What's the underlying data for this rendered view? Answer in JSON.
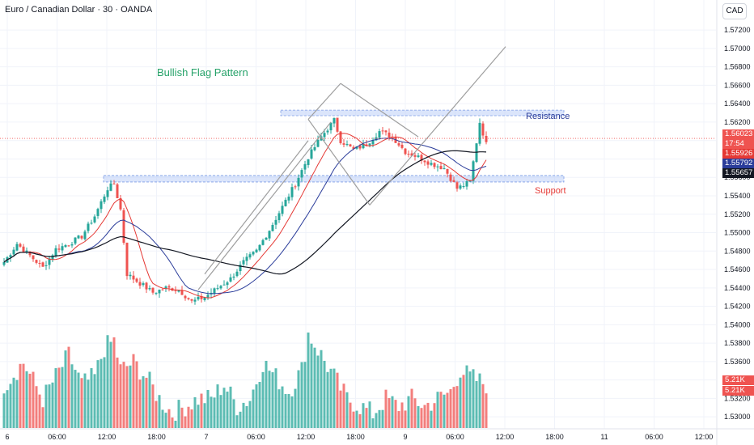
{
  "header": {
    "title": "Euro / Canadian Dollar · 30 · OANDA",
    "currency": "CAD"
  },
  "annotations": {
    "pattern": "Bullish Flag Pattern",
    "resistance": "Resistance",
    "support": "Support"
  },
  "price_tags": {
    "last": "1.56023",
    "countdown": "17:54",
    "ma_fast": "1.55926",
    "ma_mid": "1.55792",
    "ma_slow": "1.55657",
    "vol_a": "5.21K",
    "vol_b": "5.21K"
  },
  "colors": {
    "up": "#26a69a",
    "down": "#ef5350",
    "ma_fast": "#e53935",
    "ma_mid": "#2a3c9a",
    "ma_slow": "#131722",
    "zone": "#bdd0f8",
    "pattern_text": "#26a269"
  },
  "chart_data": {
    "type": "candlestick",
    "symbol": "EURCAD",
    "timeframe": "30",
    "x_ticks": [
      "6",
      "06:00",
      "12:00",
      "18:00",
      "7",
      "06:00",
      "12:00",
      "18:00",
      "9",
      "06:00",
      "12:00",
      "18:00",
      "11",
      "06:00",
      "12:00"
    ],
    "y_ticks": [
      "1.57200",
      "1.57000",
      "1.56800",
      "1.56600",
      "1.56400",
      "1.56200",
      "1.56000",
      "1.55800",
      "1.55600",
      "1.55400",
      "1.55200",
      "1.55000",
      "1.54800",
      "1.54600",
      "1.54400",
      "1.54200",
      "1.54000",
      "1.53800",
      "1.53600",
      "1.53400",
      "1.53200",
      "1.53000"
    ],
    "ylim": [
      1.5294,
      1.5728
    ],
    "resistance_zone": [
      1.5627,
      1.5633
    ],
    "support_zone": [
      1.5555,
      1.5562
    ],
    "last_price": 1.56023,
    "close_anchors": [
      [
        0,
        1.5468
      ],
      [
        4,
        1.5488
      ],
      [
        8,
        1.5475
      ],
      [
        12,
        1.5462
      ],
      [
        16,
        1.5482
      ],
      [
        20,
        1.5488
      ],
      [
        24,
        1.5496
      ],
      [
        28,
        1.5518
      ],
      [
        32,
        1.5548
      ],
      [
        34,
        1.5553
      ],
      [
        36,
        1.5525
      ],
      [
        38,
        1.5455
      ],
      [
        42,
        1.5445
      ],
      [
        46,
        1.5435
      ],
      [
        50,
        1.544
      ],
      [
        54,
        1.5438
      ],
      [
        58,
        1.5425
      ],
      [
        62,
        1.543
      ],
      [
        66,
        1.544
      ],
      [
        70,
        1.545
      ],
      [
        74,
        1.5468
      ],
      [
        78,
        1.548
      ],
      [
        82,
        1.5503
      ],
      [
        86,
        1.5528
      ],
      [
        90,
        1.5553
      ],
      [
        94,
        1.5582
      ],
      [
        98,
        1.5604
      ],
      [
        102,
        1.5622
      ],
      [
        104,
        1.56
      ],
      [
        108,
        1.559
      ],
      [
        112,
        1.5596
      ],
      [
        116,
        1.561
      ],
      [
        120,
        1.5604
      ],
      [
        124,
        1.5588
      ],
      [
        128,
        1.5582
      ],
      [
        132,
        1.5575
      ],
      [
        136,
        1.557
      ],
      [
        140,
        1.5548
      ],
      [
        144,
        1.5555
      ],
      [
        147,
        1.562
      ],
      [
        149,
        1.5596
      ]
    ],
    "volume_anchors": [
      [
        0,
        6
      ],
      [
        6,
        9
      ],
      [
        12,
        4
      ],
      [
        16,
        7
      ],
      [
        20,
        10
      ],
      [
        24,
        6
      ],
      [
        28,
        7
      ],
      [
        31,
        11
      ],
      [
        34,
        12
      ],
      [
        36,
        8
      ],
      [
        40,
        9
      ],
      [
        44,
        7
      ],
      [
        48,
        4
      ],
      [
        52,
        2
      ],
      [
        56,
        3
      ],
      [
        60,
        4
      ],
      [
        64,
        4
      ],
      [
        68,
        6
      ],
      [
        72,
        3
      ],
      [
        76,
        4
      ],
      [
        80,
        9
      ],
      [
        84,
        7
      ],
      [
        88,
        5
      ],
      [
        92,
        8
      ],
      [
        94,
        13
      ],
      [
        98,
        10
      ],
      [
        102,
        7
      ],
      [
        106,
        4
      ],
      [
        110,
        3
      ],
      [
        114,
        2
      ],
      [
        118,
        4
      ],
      [
        122,
        3
      ],
      [
        126,
        4
      ],
      [
        130,
        3
      ],
      [
        134,
        4
      ],
      [
        138,
        5
      ],
      [
        141,
        8
      ],
      [
        144,
        7
      ],
      [
        149,
        6
      ]
    ],
    "candle_count": 150,
    "ma_periods": [
      9,
      20,
      50
    ]
  }
}
